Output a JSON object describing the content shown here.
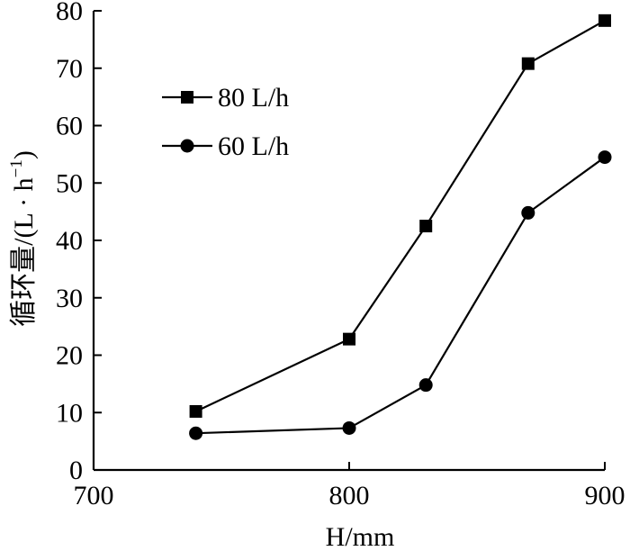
{
  "chart_data": {
    "type": "line",
    "xlabel": "H/mm",
    "ylabel_main": "循环量/(L · h",
    "ylabel_sup": "−1",
    "ylabel_close": ")",
    "xlim": [
      700,
      900
    ],
    "ylim": [
      0,
      80
    ],
    "xticks": [
      700,
      800,
      900
    ],
    "yticks": [
      0,
      10,
      20,
      30,
      40,
      50,
      60,
      70,
      80
    ],
    "grid": false,
    "legend_position": "top-left",
    "series": [
      {
        "name": "80 L/h",
        "marker": "square",
        "x": [
          740,
          800,
          830,
          870,
          900
        ],
        "y": [
          10.2,
          22.8,
          42.5,
          70.8,
          78.3
        ]
      },
      {
        "name": "60 L/h",
        "marker": "circle",
        "x": [
          740,
          800,
          830,
          870,
          900
        ],
        "y": [
          6.4,
          7.3,
          14.8,
          44.8,
          54.5
        ]
      }
    ]
  }
}
